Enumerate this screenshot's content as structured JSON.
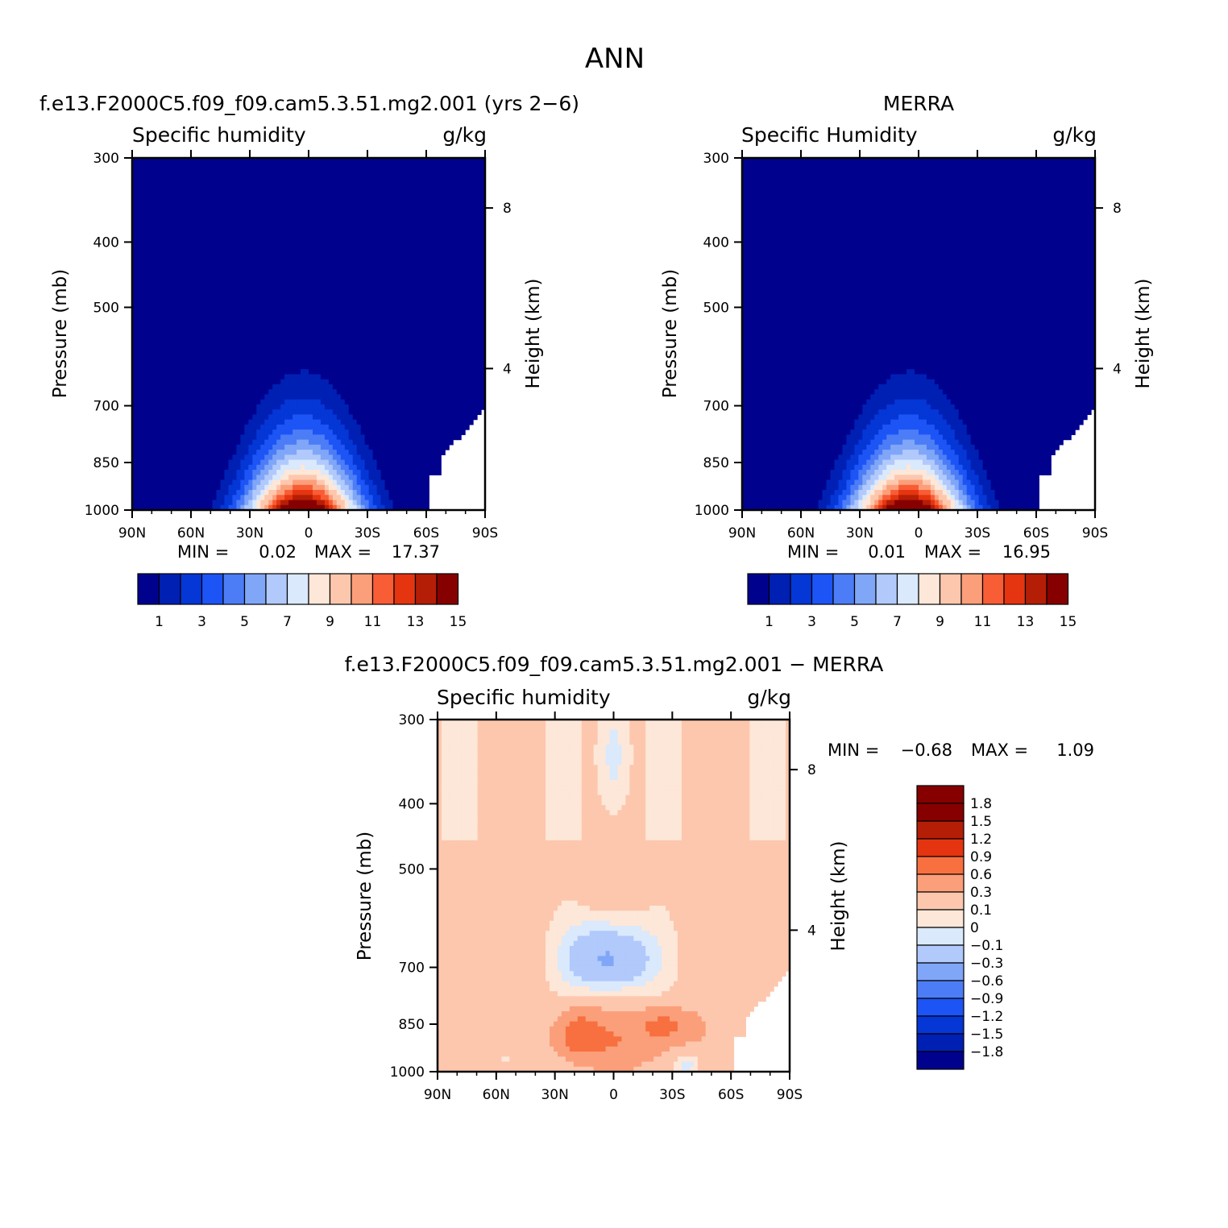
{
  "figure": {
    "title": "ANN"
  },
  "colors": {
    "levels_15": [
      "#00028e",
      "#0020b4",
      "#0536d6",
      "#1d54f5",
      "#4c7df7",
      "#80a6f8",
      "#b1c9fb",
      "#dae9fc",
      "#fde7d8",
      "#fdc7ae",
      "#fb9f7a",
      "#f85d35",
      "#e53510",
      "#b51e06",
      "#870000"
    ],
    "diff_colors": [
      "#00028e",
      "#0020b4",
      "#0536d6",
      "#1d54f5",
      "#4c7df7",
      "#80a6f8",
      "#b1c9fb",
      "#dae9fc",
      "#fde7d8",
      "#fdc7ae",
      "#fb9f7a",
      "#f87040",
      "#e53510",
      "#b51e06",
      "#870000"
    ]
  },
  "panels": [
    {
      "id": "model",
      "title": "f.e13.F2000C5.f09_f09.cam5.3.51.mg2.001 (yrs 2−6)",
      "var_label": "Specific humidity",
      "units": "g/kg",
      "ylabel": "Pressure (mb)",
      "ylabel_right": "Height (km)",
      "min_label": "MIN =",
      "min_value": "0.02",
      "max_label": "MAX =",
      "max_value": "17.37"
    },
    {
      "id": "obs",
      "title": "MERRA",
      "var_label": "Specific Humidity",
      "units": "g/kg",
      "ylabel": "Pressure (mb)",
      "ylabel_right": "Height (km)",
      "min_label": "MIN =",
      "min_value": "0.01",
      "max_label": "MAX =",
      "max_value": "16.95"
    },
    {
      "id": "diff",
      "title": "f.e13.F2000C5.f09_f09.cam5.3.51.mg2.001 − MERRA",
      "var_label": "Specific humidity",
      "units": "g/kg",
      "ylabel": "Pressure (mb)",
      "ylabel_right": "Height (km)",
      "min_label": "MIN =",
      "min_value": "−0.68",
      "max_label": "MAX =",
      "max_value": "1.09"
    }
  ],
  "axes": {
    "pressure_ticks": [
      "300",
      "400",
      "500",
      "700",
      "850",
      "1000"
    ],
    "lat_ticks": [
      "90N",
      "60N",
      "30N",
      "0",
      "30S",
      "60S",
      "90S"
    ],
    "height_ticks": [
      "8",
      "4"
    ]
  },
  "colorbar_main": {
    "labels": [
      "1",
      "3",
      "5",
      "7",
      "9",
      "11",
      "13",
      "15"
    ]
  },
  "colorbar_diff": {
    "labels": [
      "1.8",
      "1.5",
      "1.2",
      "0.9",
      "0.6",
      "0.3",
      "0.1",
      "0",
      "−0.1",
      "−0.3",
      "−0.6",
      "−0.9",
      "−1.2",
      "−1.5",
      "−1.8"
    ]
  },
  "chart_data": [
    {
      "type": "heatmap",
      "title": "f.e13.F2000C5.f09_f09.cam5.3.51.mg2.001 (yrs 2−6)",
      "subtitle": "Specific humidity",
      "units": "g/kg",
      "xlabel": "",
      "ylabel": "Pressure (mb)",
      "ylabel_right": "Height (km)",
      "x": [
        "90N",
        "60N",
        "30N",
        "0",
        "30S",
        "60S",
        "90S"
      ],
      "y": [
        300,
        400,
        500,
        700,
        850,
        1000
      ],
      "contour_levels": [
        1,
        2,
        3,
        4,
        5,
        6,
        7,
        8,
        9,
        10,
        11,
        12,
        13,
        14,
        15
      ],
      "min": 0.02,
      "max": 17.37,
      "surface_peak_lat": 3
    },
    {
      "type": "heatmap",
      "title": "MERRA",
      "subtitle": "Specific Humidity",
      "units": "g/kg",
      "xlabel": "",
      "ylabel": "Pressure (mb)",
      "ylabel_right": "Height (km)",
      "x": [
        "90N",
        "60N",
        "30N",
        "0",
        "30S",
        "60S",
        "90S"
      ],
      "y": [
        300,
        400,
        500,
        700,
        850,
        1000
      ],
      "contour_levels": [
        1,
        2,
        3,
        4,
        5,
        6,
        7,
        8,
        9,
        10,
        11,
        12,
        13,
        14,
        15
      ],
      "min": 0.01,
      "max": 16.95,
      "surface_peak_lat": 5
    },
    {
      "type": "heatmap",
      "title": "f.e13.F2000C5.f09_f09.cam5.3.51.mg2.001 − MERRA",
      "subtitle": "Specific humidity",
      "units": "g/kg",
      "xlabel": "",
      "ylabel": "Pressure (mb)",
      "ylabel_right": "Height (km)",
      "x": [
        "90N",
        "60N",
        "30N",
        "0",
        "30S",
        "60S",
        "90S"
      ],
      "y": [
        300,
        400,
        500,
        700,
        850,
        1000
      ],
      "contour_levels": [
        -1.8,
        -1.5,
        -1.2,
        -0.9,
        -0.6,
        -0.3,
        -0.1,
        0,
        0.1,
        0.3,
        0.6,
        0.9,
        1.2,
        1.5,
        1.8
      ],
      "min": -0.68,
      "max": 1.09
    }
  ]
}
